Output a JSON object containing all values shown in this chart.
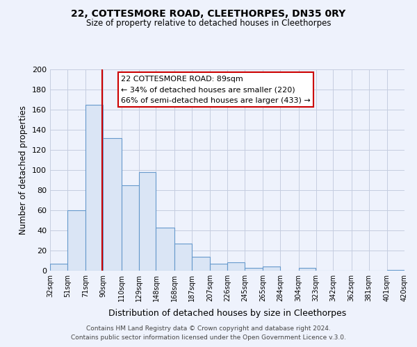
{
  "title": "22, COTTESMORE ROAD, CLEETHORPES, DN35 0RY",
  "subtitle": "Size of property relative to detached houses in Cleethorpes",
  "xlabel": "Distribution of detached houses by size in Cleethorpes",
  "ylabel": "Number of detached properties",
  "bin_edges": [
    32,
    51,
    71,
    90,
    110,
    129,
    148,
    168,
    187,
    207,
    226,
    245,
    265,
    284,
    304,
    323,
    342,
    362,
    381,
    401,
    420
  ],
  "bar_heights": [
    7,
    60,
    165,
    132,
    85,
    98,
    43,
    27,
    14,
    7,
    8,
    3,
    4,
    0,
    3,
    0,
    0,
    0,
    0,
    1
  ],
  "bar_color": "#dae5f5",
  "bar_edge_color": "#6699cc",
  "property_line_x": 89,
  "property_line_color": "#cc0000",
  "ylim": [
    0,
    200
  ],
  "yticks": [
    0,
    20,
    40,
    60,
    80,
    100,
    120,
    140,
    160,
    180,
    200
  ],
  "annotation_title": "22 COTTESMORE ROAD: 89sqm",
  "annotation_line1": "← 34% of detached houses are smaller (220)",
  "annotation_line2": "66% of semi-detached houses are larger (433) →",
  "annotation_box_color": "#ffffff",
  "annotation_box_edge_color": "#cc0000",
  "footer1": "Contains HM Land Registry data © Crown copyright and database right 2024.",
  "footer2": "Contains public sector information licensed under the Open Government Licence v.3.0.",
  "background_color": "#eef2fc",
  "grid_color": "#c5cde0"
}
